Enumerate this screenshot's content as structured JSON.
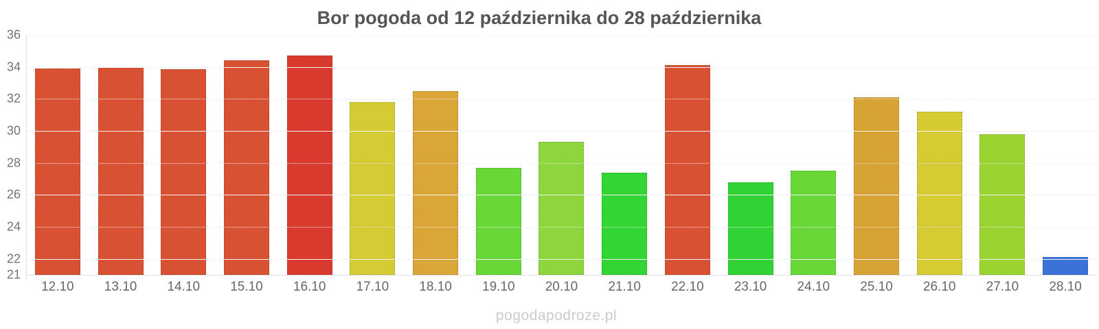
{
  "title": "Bor pogoda od 12 października do 28 października",
  "watermark": "pogodapodroze.pl",
  "chart_data": {
    "type": "bar",
    "title": "Bor pogoda od 12 października do 28 października",
    "xlabel": "",
    "ylabel": "",
    "ylim": [
      21,
      36
    ],
    "yticks": [
      36,
      34,
      32,
      30,
      28,
      26,
      24,
      22,
      21
    ],
    "grid": true,
    "legend": "none",
    "categories": [
      "12.10",
      "13.10",
      "14.10",
      "15.10",
      "16.10",
      "17.10",
      "18.10",
      "19.10",
      "20.10",
      "21.10",
      "22.10",
      "23.10",
      "24.10",
      "25.10",
      "26.10",
      "27.10",
      "28.10"
    ],
    "values": [
      33.9,
      34.0,
      33.85,
      34.4,
      34.7,
      31.8,
      32.5,
      27.7,
      29.3,
      27.4,
      34.1,
      26.8,
      27.5,
      32.1,
      31.2,
      29.8,
      22.1
    ],
    "bar_colors": [
      "#d85133",
      "#d85133",
      "#d85133",
      "#d85133",
      "#d93a2e",
      "#d5cc35",
      "#d9a637",
      "#68d838",
      "#8ed63e",
      "#32d533",
      "#d85133",
      "#31d334",
      "#68d838",
      "#d8a335",
      "#d6cb33",
      "#9bd330",
      "#3b72d8"
    ],
    "colors_meaning": {
      "hot_red": "#d93a2e",
      "warm_orange_red": "#d85133",
      "amber": "#d9a637",
      "yellow": "#d5cc35",
      "yellow_green": "#9bd330",
      "green": "#32d533",
      "cool_blue": "#3b72d8"
    },
    "axis_color": "#e2e2e2",
    "gridline_color": "#f2f2f2",
    "tick_label_color": "#6e6e6e",
    "title_color": "#555555",
    "watermark_color": "#cbcbcb"
  }
}
